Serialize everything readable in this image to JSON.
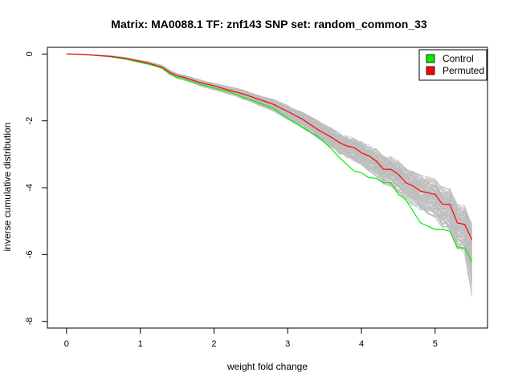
{
  "chart_data": {
    "type": "line",
    "title": "Matrix: MA0088.1 TF: znf143 SNP set: random_common_33",
    "xlabel": "weight fold change",
    "ylabel": "inverse cumulative distribution",
    "xlim": [
      -0.26,
      5.71
    ],
    "ylim": [
      -8.2,
      0.2
    ],
    "xticks": [
      0,
      1,
      2,
      3,
      4,
      5
    ],
    "yticks": [
      0,
      -2,
      -4,
      -6,
      -8
    ],
    "legend": {
      "position": "top-right",
      "entries": [
        {
          "name": "Control",
          "color": "#00ee00"
        },
        {
          "name": "Permuted",
          "color": "#ff0000"
        }
      ]
    },
    "x": [
      0.0,
      0.2,
      0.4,
      0.6,
      0.8,
      0.9,
      1.0,
      1.1,
      1.2,
      1.3,
      1.4,
      1.5,
      1.6,
      1.8,
      2.0,
      2.2,
      2.4,
      2.6,
      2.8,
      3.0,
      3.2,
      3.4,
      3.6,
      3.7,
      3.8,
      3.9,
      4.0,
      4.1,
      4.2,
      4.3,
      4.4,
      4.5,
      4.6,
      4.7,
      4.8,
      4.9,
      5.0,
      5.1,
      5.2,
      5.3,
      5.4,
      5.5
    ],
    "series": [
      {
        "name": "Control",
        "color": "#00ee00",
        "values": [
          0.0,
          -0.01,
          -0.04,
          -0.08,
          -0.15,
          -0.2,
          -0.25,
          -0.3,
          -0.35,
          -0.42,
          -0.6,
          -0.7,
          -0.75,
          -0.9,
          -1.02,
          -1.12,
          -1.3,
          -1.45,
          -1.62,
          -1.92,
          -2.2,
          -2.45,
          -2.85,
          -3.1,
          -3.3,
          -3.5,
          -3.55,
          -3.7,
          -3.72,
          -3.85,
          -3.85,
          -4.2,
          -4.35,
          -4.7,
          -5.05,
          -5.15,
          -5.25,
          -5.25,
          -5.3,
          -5.8,
          -5.8,
          -6.2
        ]
      },
      {
        "name": "Permuted",
        "color": "#ff0000",
        "values": [
          0.0,
          -0.01,
          -0.04,
          -0.07,
          -0.13,
          -0.18,
          -0.22,
          -0.27,
          -0.33,
          -0.4,
          -0.55,
          -0.65,
          -0.7,
          -0.85,
          -0.95,
          -1.08,
          -1.2,
          -1.35,
          -1.5,
          -1.72,
          -1.95,
          -2.25,
          -2.5,
          -2.65,
          -2.75,
          -2.8,
          -2.95,
          -3.05,
          -3.2,
          -3.45,
          -3.45,
          -3.6,
          -3.85,
          -3.95,
          -4.1,
          -4.15,
          -4.2,
          -4.5,
          -4.5,
          -5.05,
          -5.1,
          -5.55
        ]
      }
    ],
    "background_series": {
      "color": "#bebebe",
      "count": 100,
      "x": [
        0.0,
        0.2,
        0.4,
        0.6,
        0.8,
        0.9,
        1.0,
        1.1,
        1.2,
        1.3,
        1.4,
        1.5,
        1.6,
        1.8,
        2.0,
        2.2,
        2.4,
        2.6,
        2.8,
        3.0,
        3.2,
        3.4,
        3.6,
        3.7,
        3.8,
        3.9,
        4.0,
        4.1,
        4.2,
        4.3,
        4.4,
        4.5,
        4.6,
        4.7,
        4.8,
        4.9,
        5.0,
        5.1,
        5.2,
        5.3,
        5.4,
        5.5
      ],
      "center": [
        0.0,
        -0.01,
        -0.04,
        -0.07,
        -0.13,
        -0.18,
        -0.22,
        -0.27,
        -0.33,
        -0.4,
        -0.56,
        -0.66,
        -0.71,
        -0.86,
        -0.97,
        -1.09,
        -1.22,
        -1.37,
        -1.52,
        -1.74,
        -1.97,
        -2.25,
        -2.52,
        -2.68,
        -2.78,
        -2.84,
        -2.98,
        -3.1,
        -3.24,
        -3.46,
        -3.5,
        -3.66,
        -3.88,
        -4.0,
        -4.15,
        -4.22,
        -4.3,
        -4.55,
        -4.6,
        -5.1,
        -5.2,
        -5.6
      ],
      "lower": [
        0.0,
        -0.01,
        -0.05,
        -0.09,
        -0.16,
        -0.21,
        -0.26,
        -0.31,
        -0.37,
        -0.45,
        -0.62,
        -0.73,
        -0.79,
        -0.95,
        -1.07,
        -1.2,
        -1.36,
        -1.53,
        -1.7,
        -1.96,
        -2.22,
        -2.52,
        -2.82,
        -3.0,
        -3.12,
        -3.2,
        -3.36,
        -3.5,
        -3.66,
        -3.9,
        -3.96,
        -4.14,
        -4.38,
        -4.52,
        -4.7,
        -4.8,
        -4.9,
        -5.2,
        -5.3,
        -5.85,
        -6.0,
        -7.25
      ],
      "upper": [
        0.0,
        0.0,
        -0.03,
        -0.05,
        -0.1,
        -0.14,
        -0.18,
        -0.22,
        -0.28,
        -0.34,
        -0.48,
        -0.58,
        -0.63,
        -0.76,
        -0.86,
        -0.97,
        -1.08,
        -1.21,
        -1.34,
        -1.54,
        -1.74,
        -1.98,
        -2.22,
        -2.36,
        -2.44,
        -2.5,
        -2.62,
        -2.72,
        -2.84,
        -3.04,
        -3.07,
        -3.2,
        -3.4,
        -3.5,
        -3.62,
        -3.68,
        -3.75,
        -3.97,
        -4.0,
        -4.5,
        -4.55,
        -5.0
      ]
    }
  }
}
